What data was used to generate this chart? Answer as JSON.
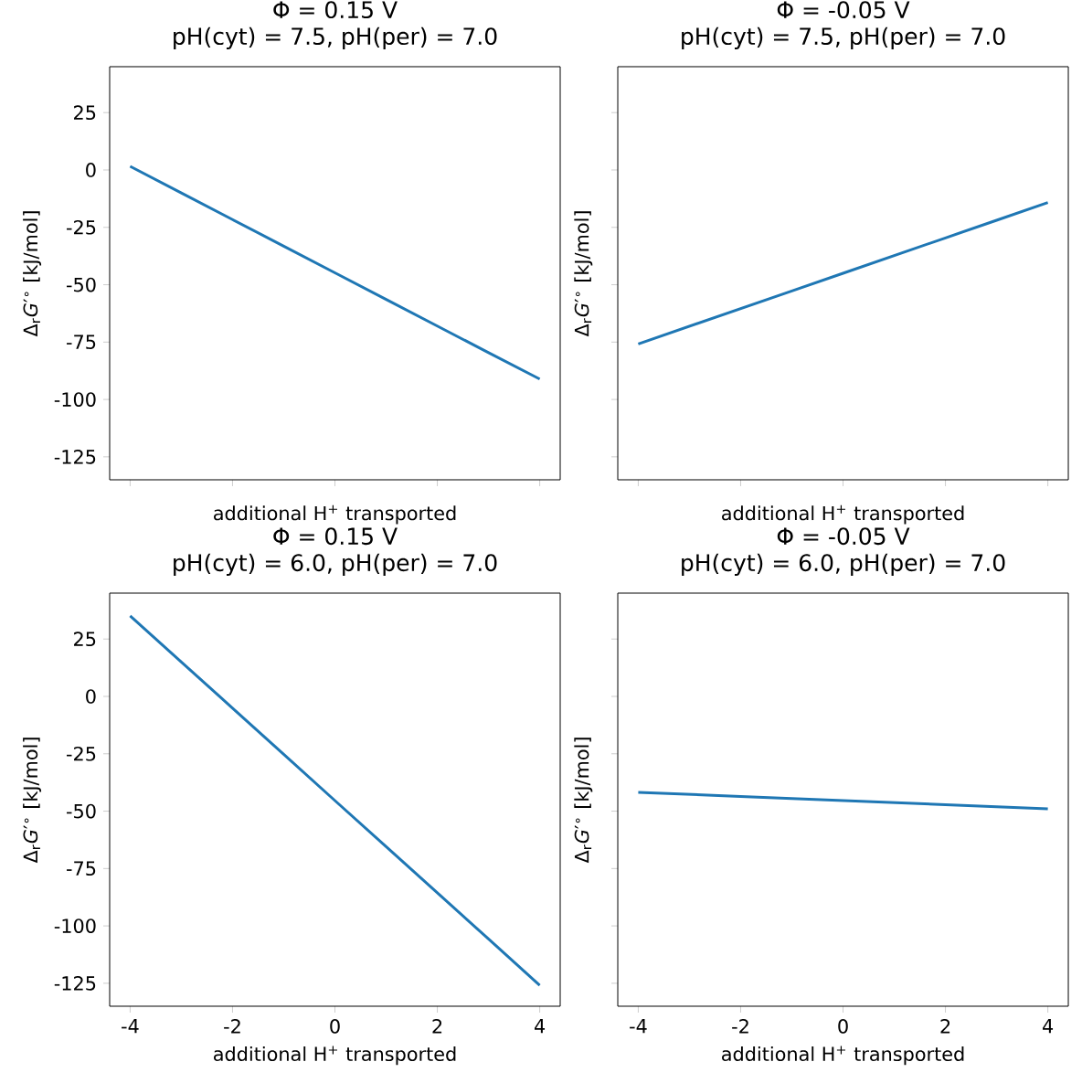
{
  "chart_data": [
    {
      "type": "line",
      "title": "Φ = 0.15 V",
      "subtitle": "pH(cyt) = 7.5, pH(per) = 7.0",
      "xlabel": "additional H$^{+}$ transported",
      "ylabel": "Δ$_{r}$*G*′$^{∘}$ [kJ/mol]",
      "x": [
        -4,
        -3,
        -2,
        -1,
        0,
        1,
        2,
        3,
        4
      ],
      "values": [
        1.6,
        -10,
        -21.6,
        -33.2,
        -44.8,
        -56.4,
        -68,
        -79.6,
        -91.1
      ],
      "color": "#1f77b4",
      "xlim": [
        -4.4,
        4.4
      ],
      "ylim": [
        -135,
        45
      ],
      "xticks": [
        -4,
        -2,
        0,
        2,
        4
      ],
      "yticks": [
        -125,
        -100,
        -75,
        -50,
        -25,
        0,
        25
      ],
      "tick_labels": "y"
    },
    {
      "type": "line",
      "title": "Φ = -0.05 V",
      "subtitle": "pH(cyt) = 7.5, pH(per) = 7.0",
      "xlabel": "additional H$^{+}$ transported",
      "ylabel": "Δ$_{r}$*G*′$^{∘}$ [kJ/mol]",
      "x": [
        -4,
        -3,
        -2,
        -1,
        0,
        1,
        2,
        3,
        4
      ],
      "values": [
        -75.8,
        -68.1,
        -60.4,
        -52.7,
        -45,
        -37.3,
        -29.6,
        -21.9,
        -14.2
      ],
      "color": "#1f77b4",
      "xlim": [
        -4.4,
        4.4
      ],
      "ylim": [
        -135,
        45
      ],
      "xticks": [
        -4,
        -2,
        0,
        2,
        4
      ],
      "yticks": [
        -125,
        -100,
        -75,
        -50,
        -25,
        0,
        25
      ],
      "tick_labels": false
    },
    {
      "type": "line",
      "title": "Φ = 0.15 V",
      "subtitle": "pH(cyt) = 6.0, pH(per) = 7.0",
      "xlabel": "additional H$^{+}$ transported",
      "ylabel": "Δ$_{r}$*G*′$^{∘}$ [kJ/mol]",
      "x": [
        -4,
        -3,
        -2,
        -1,
        0,
        1,
        2,
        3,
        4
      ],
      "values": [
        35.1,
        15,
        -5.1,
        -25.2,
        -45.4,
        -65.5,
        -85.6,
        -105.7,
        -125.9
      ],
      "color": "#1f77b4",
      "xlim": [
        -4.4,
        4.4
      ],
      "ylim": [
        -135,
        45
      ],
      "xticks": [
        -4,
        -2,
        0,
        2,
        4
      ],
      "yticks": [
        -125,
        -100,
        -75,
        -50,
        -25,
        0,
        25
      ]
    },
    {
      "type": "line",
      "title": "Φ = -0.05 V",
      "subtitle": "pH(cyt) = 6.0, pH(per) = 7.0",
      "xlabel": "additional H$^{+}$ transported",
      "ylabel": "Δ$_{r}$*G*′$^{∘}$ [kJ/mol]",
      "x": [
        -4,
        -3,
        -2,
        -1,
        0,
        1,
        2,
        3,
        4
      ],
      "values": [
        -41.8,
        -42.7,
        -43.6,
        -44.5,
        -45.4,
        -46.3,
        -47.2,
        -48.1,
        -49.0
      ],
      "color": "#1f77b4",
      "xlim": [
        -4.4,
        4.4
      ],
      "ylim": [
        -135,
        45
      ],
      "xticks": [
        -4,
        -2,
        0,
        2,
        4
      ],
      "yticks": [
        -125,
        -100,
        -75,
        -50,
        -25,
        0,
        25
      ],
      "tick_labels": "x"
    }
  ]
}
